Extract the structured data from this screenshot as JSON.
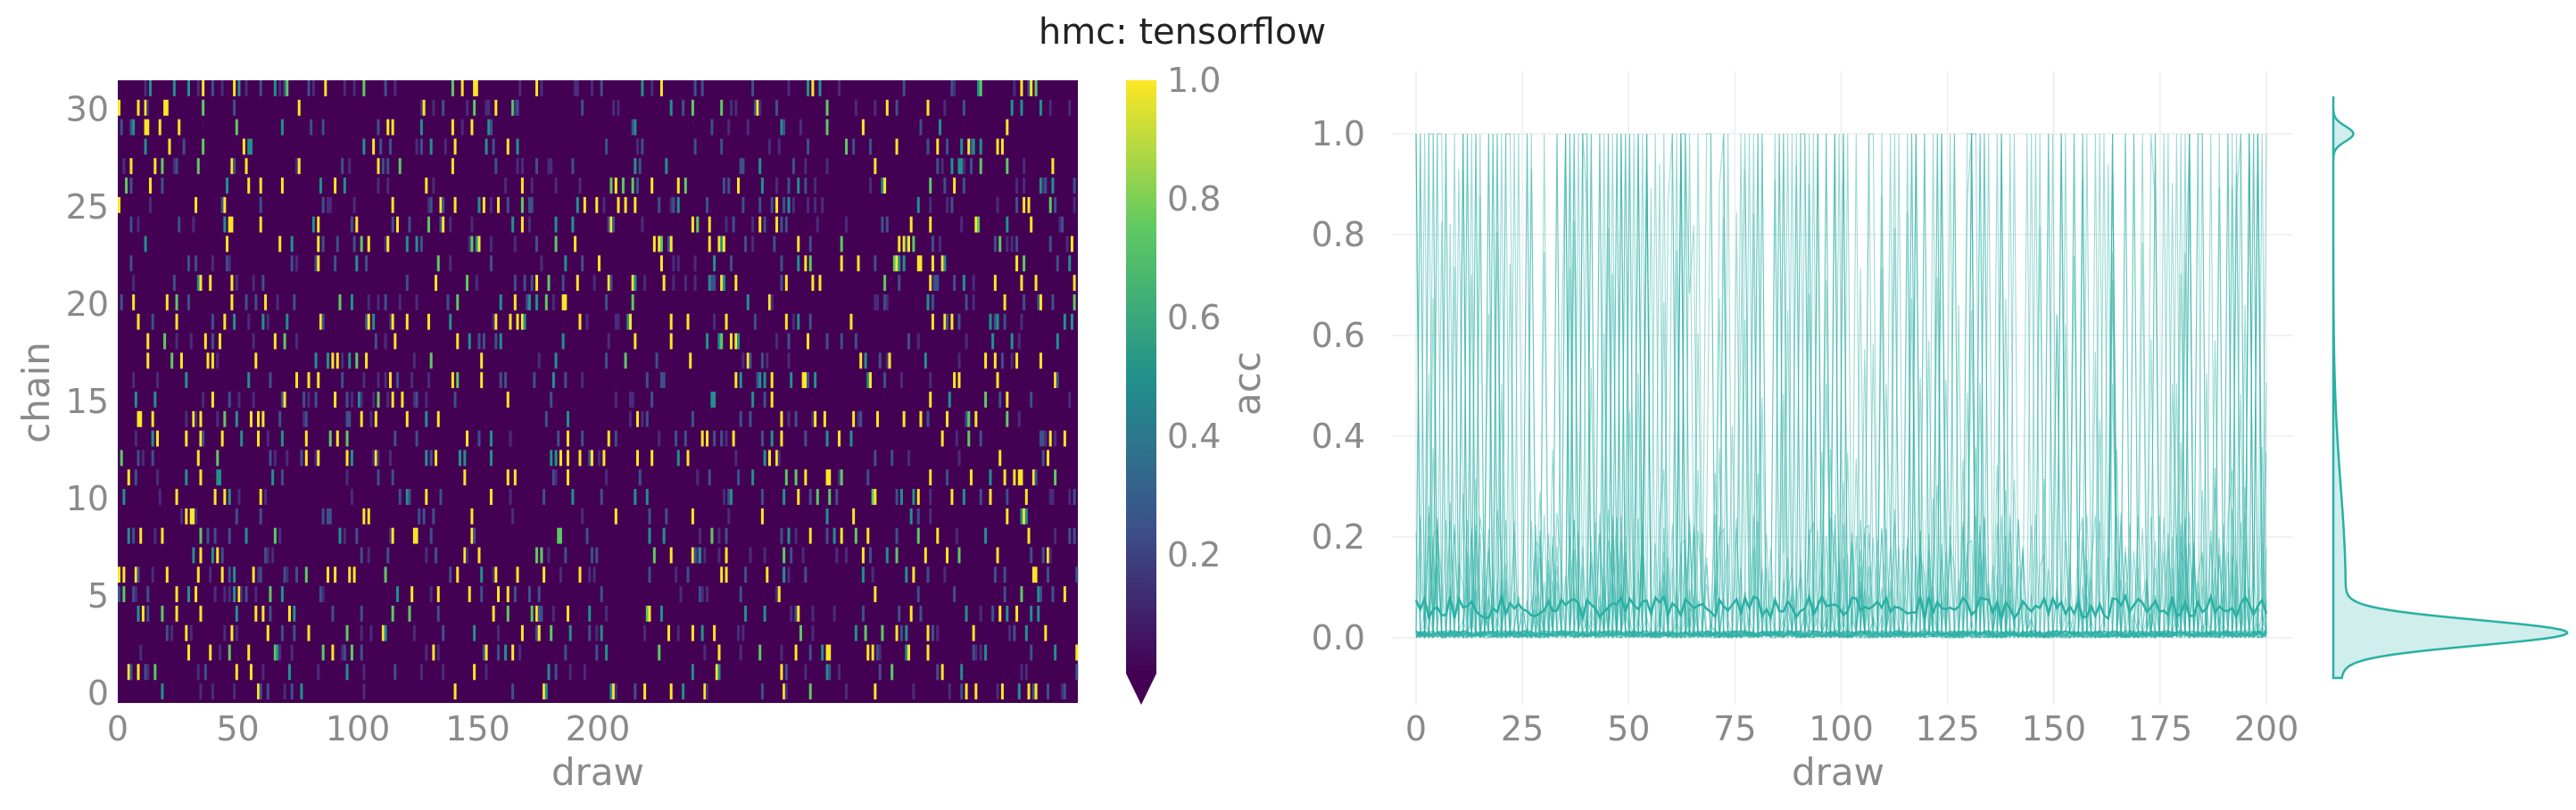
{
  "title": "hmc: tensorflow",
  "chart_data": [
    {
      "type": "heatmap",
      "xlabel": "draw",
      "ylabel": "chain",
      "x_ticks": [
        0,
        50,
        100,
        150,
        200
      ],
      "y_ticks": [
        0,
        5,
        10,
        15,
        20,
        25,
        30
      ],
      "x_range": [
        0,
        400
      ],
      "y_range": [
        0,
        31
      ],
      "n_chains": 32,
      "n_draws": 400,
      "colorscale": "viridis",
      "colorbar": {
        "label": "acc",
        "ticks": [
          "0.2",
          "0.4",
          "0.6",
          "0.8",
          "1.0"
        ],
        "range": [
          0,
          1
        ]
      },
      "colors": [
        "#440154",
        "#3b528b",
        "#21918c",
        "#5ec962",
        "#fde725"
      ]
    },
    {
      "type": "line",
      "xlabel": "draw",
      "ylabel": "",
      "x_ticks": [
        "0",
        "25",
        "50",
        "75",
        "100",
        "125",
        "150",
        "175",
        "200"
      ],
      "y_ticks": [
        "0.0",
        "0.2",
        "0.4",
        "0.6",
        "0.8",
        "1.0"
      ],
      "xlim": [
        0,
        200
      ],
      "ylim": [
        -0.12,
        1.08
      ],
      "n_traces": 32,
      "n_points": 200,
      "mean_level": 0.06,
      "line_color": "#2ab0a4",
      "marginal": {
        "type": "violin",
        "peak_at": 0.01,
        "secondary_peak_at": 1.0
      }
    }
  ]
}
